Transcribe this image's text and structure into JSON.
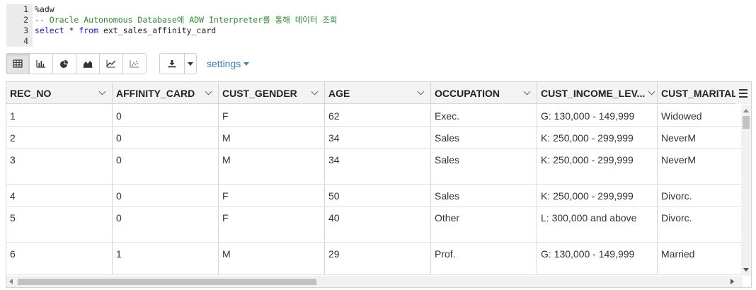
{
  "editor": {
    "lines": [
      {
        "num": "1",
        "text": "%adw"
      },
      {
        "num": "2",
        "text": "-- Oracle Autonomous Database에 ADW Interpreter를 통해 데이터 조회"
      },
      {
        "num": "3",
        "kw1": "select",
        "mid": " * ",
        "kw2": "from",
        "rest": " ext_sales_affinity_card"
      },
      {
        "num": "4",
        "text": ""
      }
    ]
  },
  "toolbar": {
    "views": [
      {
        "icon": "table-icon",
        "active": true
      },
      {
        "icon": "bar-chart-icon",
        "active": false
      },
      {
        "icon": "pie-chart-icon",
        "active": false
      },
      {
        "icon": "area-chart-icon",
        "active": false
      },
      {
        "icon": "line-chart-icon",
        "active": false
      },
      {
        "icon": "scatter-chart-icon",
        "active": false
      }
    ],
    "download_icon": "download-icon",
    "settings_label": "settings"
  },
  "grid": {
    "columns": [
      {
        "label": "REC_NO"
      },
      {
        "label": "AFFINITY_CARD"
      },
      {
        "label": "CUST_GENDER"
      },
      {
        "label": "AGE"
      },
      {
        "label": "OCCUPATION"
      },
      {
        "label": "CUST_INCOME_LEV..."
      },
      {
        "label": "CUST_MARITAL"
      }
    ],
    "rows": [
      [
        "1",
        "0",
        "F",
        "62",
        "Exec.",
        "G: 130,000 - 149,999",
        "Widowed"
      ],
      [
        "2",
        "0",
        "M",
        "34",
        "Sales",
        "K: 250,000 - 299,999",
        "NeverM"
      ],
      [
        "3",
        "0",
        "M",
        "34",
        "Sales",
        "K: 250,000 - 299,999",
        "NeverM"
      ],
      [
        "4",
        "0",
        "F",
        "50",
        "Sales",
        "K: 250,000 - 299,999",
        "Divorc."
      ],
      [
        "5",
        "0",
        "F",
        "40",
        "Other",
        "L: 300,000 and above",
        "Divorc."
      ],
      [
        "6",
        "1",
        "M",
        "29",
        "Prof.",
        "G: 130,000 - 149,999",
        "Married"
      ]
    ]
  },
  "colors": {
    "accent": "#3a7fc1",
    "comment": "#2e8b2e",
    "keyword": "#1b1bd6"
  }
}
